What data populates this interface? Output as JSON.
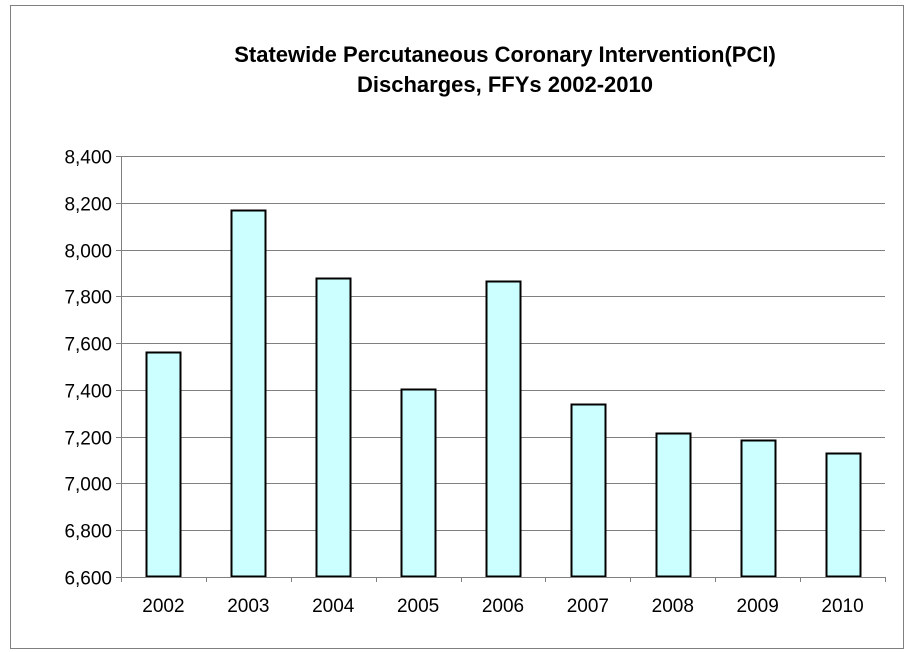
{
  "chart_data": {
    "type": "bar",
    "title_line1": "Statewide Percutaneous Coronary Intervention(PCI)",
    "title_line2": "Discharges, FFYs 2002-2010",
    "categories": [
      "2002",
      "2003",
      "2004",
      "2005",
      "2006",
      "2007",
      "2008",
      "2009",
      "2010"
    ],
    "values": [
      7560,
      8170,
      7880,
      7405,
      7865,
      7340,
      7215,
      7185,
      7130
    ],
    "ylim": [
      6600,
      8400
    ],
    "yticks": [
      6600,
      6800,
      7000,
      7200,
      7400,
      7600,
      7800,
      8000,
      8200,
      8400
    ],
    "ytick_labels": [
      "6,600",
      "6,800",
      "7,000",
      "7,200",
      "7,400",
      "7,600",
      "7,800",
      "8,000",
      "8,200",
      "8,400"
    ],
    "grid": true,
    "legend": "none",
    "colors": {
      "bar_fill": "#ccffff",
      "bar_stroke": "#000000",
      "grid": "#808080",
      "axis": "#808080"
    }
  }
}
